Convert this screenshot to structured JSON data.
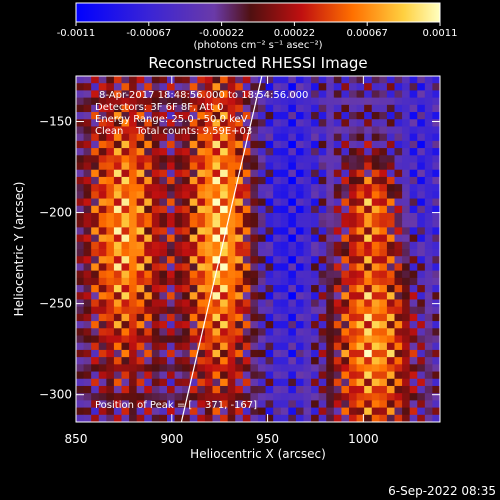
{
  "chart_data": {
    "type": "heatmap",
    "title": "Reconstructed RHESSI Image",
    "xlabel": "Heliocentric X (arcsec)",
    "ylabel": "Heliocentric Y (arcsec)",
    "xlim": [
      850,
      1040
    ],
    "ylim": [
      -315,
      -125
    ],
    "x_ticks": [
      850,
      900,
      950,
      1000
    ],
    "y_ticks": [
      -150,
      -200,
      -250,
      -300
    ],
    "colorbar": {
      "ticks": [
        "-0.0011",
        "-0.00067",
        "-0.00022",
        "0.00022",
        "0.00067",
        "0.0011"
      ],
      "units_label": "(photons cm⁻² s⁻¹ asec⁻²)",
      "range": [
        -0.0011,
        0.0011
      ]
    },
    "annotations": [
      "8-Apr-2017 18:48:56.000 to 18:54:56.000",
      "Detectors: 3F 6F 8F, Att 0",
      "Energy Range: 25.0 - 50.0 keV",
      "Clean    Total counts: 9.59E+03"
    ],
    "peak_label": "Position of Peak = [",
    "peak_value": "371, -167]",
    "limb_line": {
      "x": [
        905,
        947
      ],
      "y": [
        -315,
        -125
      ]
    },
    "image": {
      "nx": 48,
      "ny": 48,
      "features": [
        {
          "x": 875,
          "y": -210,
          "sx": 14,
          "sy": 60,
          "amp": 0.001
        },
        {
          "x": 925,
          "y": -210,
          "sx": 13,
          "sy": 70,
          "amp": 0.0011
        },
        {
          "x": 1005,
          "y": -270,
          "sx": 15,
          "sy": 45,
          "amp": 0.001
        },
        {
          "x": 1005,
          "y": -195,
          "sx": 10,
          "sy": 18,
          "amp": 0.0006
        },
        {
          "x": 960,
          "y": -200,
          "sx": 12,
          "sy": 80,
          "amp": -0.0005
        },
        {
          "x": 1030,
          "y": -180,
          "sx": 10,
          "sy": 50,
          "amp": -0.0004
        }
      ]
    }
  },
  "footer": {
    "timestamp": "6-Sep-2022 08:35"
  },
  "colors": {
    "background": "#000000",
    "text": "#ffffff"
  }
}
